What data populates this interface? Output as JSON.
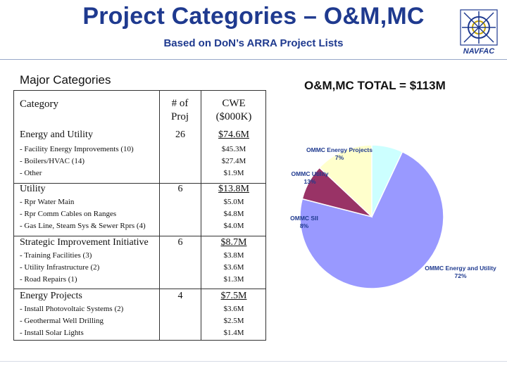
{
  "header": {
    "title": "Project Categories – O&M,MC",
    "subtitle": "Based on DoN’s ARRA Project Lists",
    "logo_text": "NAVFAC"
  },
  "left_label": "Major Categories",
  "total_label": "O&M,MC TOTAL = $113M",
  "table": {
    "headers": {
      "category": "Category",
      "proj_line1": "# of",
      "proj_line2": "Proj",
      "cwe_line1": "CWE",
      "cwe_line2": "($000K)"
    },
    "groups": [
      {
        "name": "Energy and Utility",
        "count": "26",
        "total": "$74.6M",
        "items": [
          {
            "label": "- Facility Energy Improvements (10)",
            "value": "$45.3M"
          },
          {
            "label": "- Boilers/HVAC (14)",
            "value": "$27.4M"
          },
          {
            "label": "- Other",
            "value": "$1.9M"
          }
        ]
      },
      {
        "name": "Utility",
        "count": "6",
        "total": "$13.8M",
        "items": [
          {
            "label": "- Rpr Water Main",
            "value": "$5.0M"
          },
          {
            "label": "- Rpr Comm Cables on Ranges",
            "value": "$4.8M"
          },
          {
            "label": "- Gas Line, Steam Sys & Sewer Rprs (4)",
            "value": "$4.0M"
          }
        ]
      },
      {
        "name": "Strategic Improvement Initiative",
        "count": "6",
        "total": "$8.7M",
        "items": [
          {
            "label": "- Training Facilities (3)",
            "value": "$3.8M"
          },
          {
            "label": "- Utility Infrastructure (2)",
            "value": "$3.6M"
          },
          {
            "label": "- Road Repairs (1)",
            "value": "$1.3M"
          }
        ]
      },
      {
        "name": "Energy Projects",
        "count": "4",
        "total": "$7.5M",
        "items": [
          {
            "label": "- Install Photovoltaic Systems (2)",
            "value": "$3.6M"
          },
          {
            "label": "- Geothermal Well Drilling",
            "value": "$2.5M"
          },
          {
            "label": "- Install Solar Lights",
            "value": "$1.4M"
          }
        ]
      }
    ]
  },
  "chart_data": {
    "type": "pie",
    "title": "",
    "slices": [
      {
        "name": "OMMC Energy and Utility",
        "pct_label": "72%",
        "value": 72,
        "color": "#9999ff"
      },
      {
        "name": "OMMC SII",
        "pct_label": "8%",
        "value": 8,
        "color": "#993366"
      },
      {
        "name": "OMMC Utility",
        "pct_label": "13%",
        "value": 13,
        "color": "#ffffcc"
      },
      {
        "name": "OMMC Energy Projects",
        "pct_label": "7%",
        "value": 7,
        "color": "#ccffff"
      }
    ]
  }
}
